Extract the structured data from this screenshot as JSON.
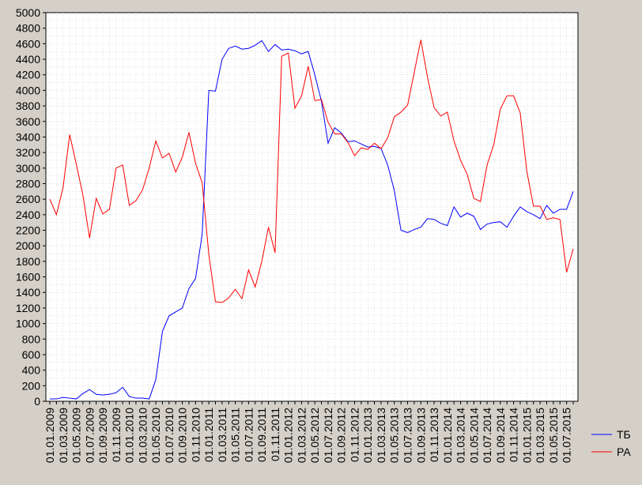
{
  "chart_data": {
    "type": "line",
    "title": "",
    "xlabel": "",
    "ylabel": "",
    "ylim": [
      0,
      5000
    ],
    "y_ticks": [
      0,
      200,
      400,
      600,
      800,
      1000,
      1200,
      1400,
      1600,
      1800,
      2000,
      2200,
      2400,
      2600,
      2800,
      3000,
      3200,
      3400,
      3600,
      3800,
      4000,
      4200,
      4400,
      4600,
      4800,
      5000
    ],
    "x_tick_labels": [
      "01.01.2009",
      "01.03.2009",
      "01.05.2009",
      "01.07.2009",
      "01.09.2009",
      "01.11.2009",
      "01.01.2010",
      "01.03.2010",
      "01.05.2010",
      "01.07.2010",
      "01.09.2010",
      "01.11.2010",
      "01.01.2011",
      "01.03.2011",
      "01.05.2011",
      "01.07.2011",
      "01.09.2011",
      "01.11.2011",
      "01.01.2012",
      "01.03.2012",
      "01.05.2012",
      "01.07.2012",
      "01.09.2012",
      "01.11.2012",
      "01.01.2013",
      "01.03.2013",
      "01.05.2013",
      "01.07.2013",
      "01.09.2013",
      "01.11.2013",
      "01.01.2014",
      "01.03.2014",
      "01.05.2014",
      "01.07.2014",
      "01.09.2014",
      "01.11.2014",
      "01.01.2015",
      "01.03.2015",
      "01.05.2015",
      "01.07.2015"
    ],
    "grid": true,
    "legend": "right",
    "series": [
      {
        "name": "ТБ",
        "color": "#0000ff",
        "values": [
          30,
          30,
          50,
          40,
          30,
          100,
          150,
          90,
          80,
          90,
          110,
          180,
          60,
          40,
          40,
          30,
          280,
          900,
          1100,
          1150,
          1200,
          1450,
          1580,
          2150,
          4000,
          3990,
          4400,
          4540,
          4570,
          4530,
          4540,
          4580,
          4640,
          4500,
          4590,
          4520,
          4530,
          4510,
          4470,
          4500,
          4200,
          3860,
          3320,
          3520,
          3450,
          3340,
          3350,
          3310,
          3270,
          3280,
          3250,
          3040,
          2710,
          2200,
          2170,
          2210,
          2240,
          2350,
          2340,
          2290,
          2260,
          2500,
          2370,
          2420,
          2380,
          2210,
          2280,
          2300,
          2310,
          2240,
          2380,
          2500,
          2440,
          2400,
          2350,
          2520,
          2420,
          2470,
          2470,
          2700
        ]
      },
      {
        "name": "РА",
        "color": "#ff0000",
        "values": [
          2600,
          2400,
          2750,
          3430,
          3050,
          2650,
          2100,
          2610,
          2410,
          2470,
          3000,
          3040,
          2520,
          2580,
          2720,
          3000,
          3350,
          3130,
          3190,
          2950,
          3140,
          3460,
          3060,
          2810,
          1890,
          1280,
          1270,
          1330,
          1440,
          1320,
          1690,
          1470,
          1800,
          2240,
          1910,
          4440,
          4480,
          3770,
          3930,
          4310,
          3870,
          3880,
          3590,
          3440,
          3440,
          3330,
          3160,
          3260,
          3240,
          3320,
          3250,
          3390,
          3660,
          3720,
          3810,
          4230,
          4650,
          4170,
          3780,
          3670,
          3720,
          3350,
          3100,
          2920,
          2610,
          2570,
          3040,
          3300,
          3760,
          3930,
          3930,
          3710,
          2960,
          2510,
          2510,
          2340,
          2360,
          2340,
          1660,
          1960
        ]
      }
    ]
  }
}
